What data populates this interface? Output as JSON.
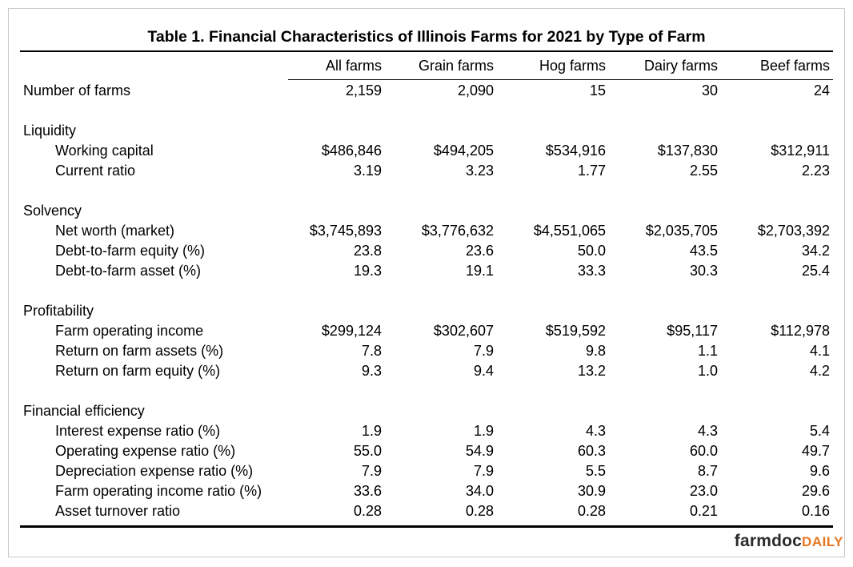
{
  "title": "Table 1.  Financial Characteristics of Illinois Farms for 2021 by Type of Farm",
  "columns": [
    "All farms",
    "Grain farms",
    "Hog farms",
    "Dairy farms",
    "Beef farms"
  ],
  "rows": [
    {
      "label": "Number of farms",
      "values": [
        "2,159",
        "2,090",
        "15",
        "30",
        "24"
      ]
    },
    {
      "label": "Liquidity"
    },
    {
      "label": "Working capital",
      "values": [
        "$486,846",
        "$494,205",
        "$534,916",
        "$137,830",
        "$312,911"
      ]
    },
    {
      "label": "Current ratio",
      "values": [
        "3.19",
        "3.23",
        "1.77",
        "2.55",
        "2.23"
      ]
    },
    {
      "label": "Solvency"
    },
    {
      "label": "Net worth (market)",
      "values": [
        "$3,745,893",
        "$3,776,632",
        "$4,551,065",
        "$2,035,705",
        "$2,703,392"
      ]
    },
    {
      "label": "Debt-to-farm equity (%)",
      "values": [
        "23.8",
        "23.6",
        "50.0",
        "43.5",
        "34.2"
      ]
    },
    {
      "label": "Debt-to-farm asset (%)",
      "values": [
        "19.3",
        "19.1",
        "33.3",
        "30.3",
        "25.4"
      ]
    },
    {
      "label": "Profitability"
    },
    {
      "label": "Farm operating income",
      "values": [
        "$299,124",
        "$302,607",
        "$519,592",
        "$95,117",
        "$112,978"
      ]
    },
    {
      "label": "Return on farm assets (%)",
      "values": [
        "7.8",
        "7.9",
        "9.8",
        "1.1",
        "4.1"
      ]
    },
    {
      "label": "Return on farm equity (%)",
      "values": [
        "9.3",
        "9.4",
        "13.2",
        "1.0",
        "4.2"
      ]
    },
    {
      "label": "Financial efficiency"
    },
    {
      "label": "Interest expense ratio (%)",
      "values": [
        "1.9",
        "1.9",
        "4.3",
        "4.3",
        "5.4"
      ]
    },
    {
      "label": "Operating expense ratio (%)",
      "values": [
        "55.0",
        "54.9",
        "60.3",
        "60.0",
        "49.7"
      ]
    },
    {
      "label": "Depreciation expense ratio (%)",
      "values": [
        "7.9",
        "7.9",
        "5.5",
        "8.7",
        "9.6"
      ]
    },
    {
      "label": "Farm operating income ratio (%)",
      "values": [
        "33.6",
        "34.0",
        "30.9",
        "23.0",
        "29.6"
      ]
    },
    {
      "label": "Asset turnover ratio",
      "values": [
        "0.28",
        "0.28",
        "0.28",
        "0.21",
        "0.16"
      ]
    }
  ],
  "logo": {
    "part1": "farmdoc",
    "part2": "DAILY"
  }
}
